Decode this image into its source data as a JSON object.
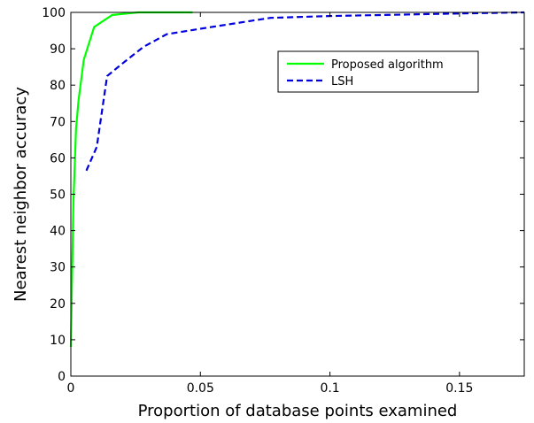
{
  "chart_data": {
    "type": "line",
    "title": "",
    "xlabel": "Proportion of database points examined",
    "ylabel": "Nearest neighbor accuracy",
    "xlim": [
      0,
      0.175
    ],
    "ylim": [
      0,
      100
    ],
    "x_ticks": [
      0,
      0.05,
      0.1,
      0.15
    ],
    "x_tick_labels": [
      "0",
      "0.05",
      "0.1",
      "0.15"
    ],
    "y_ticks": [
      0,
      10,
      20,
      30,
      40,
      50,
      60,
      70,
      80,
      90,
      100
    ],
    "y_tick_labels": [
      "0",
      "10",
      "20",
      "30",
      "40",
      "50",
      "60",
      "70",
      "80",
      "90",
      "100"
    ],
    "grid": false,
    "legend_placement": "top-right",
    "series": [
      {
        "name": "Proposed algorithm",
        "color": "#00ff00",
        "dash": "solid",
        "x": [
          0,
          0.0005,
          0.001,
          0.002,
          0.003,
          0.005,
          0.009,
          0.016,
          0.026,
          0.047
        ],
        "y": [
          8,
          28,
          48,
          68,
          76,
          87,
          96,
          99.3,
          100,
          100
        ]
      },
      {
        "name": "LSH",
        "color": "#0000dd",
        "dash": "dashed",
        "x": [
          0.006,
          0.01,
          0.014,
          0.02,
          0.028,
          0.037,
          0.05,
          0.077,
          0.1,
          0.15,
          0.175
        ],
        "y": [
          56.5,
          63,
          82.5,
          86,
          90.5,
          94,
          95.5,
          98.5,
          99,
          99.7,
          100
        ]
      }
    ]
  }
}
